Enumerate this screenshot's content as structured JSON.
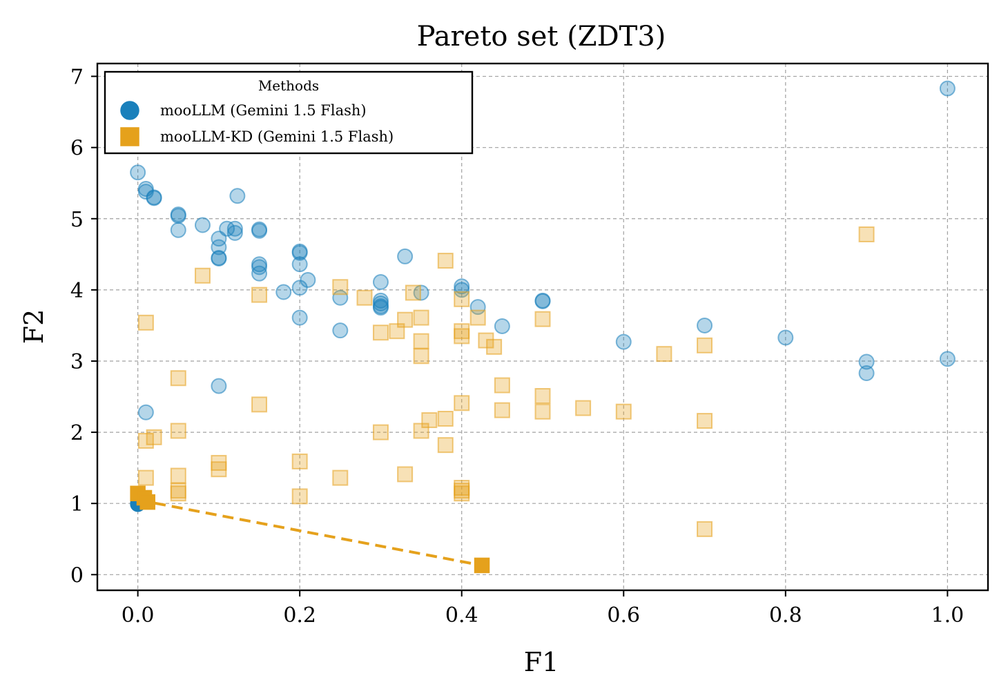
{
  "chart_data": {
    "type": "scatter",
    "title": "Pareto set (ZDT3)",
    "xlabel": "F1",
    "ylabel": "F2",
    "xlim": [
      -0.05,
      1.05
    ],
    "ylim": [
      -0.22,
      7.18
    ],
    "xticks": [
      0.0,
      0.2,
      0.4,
      0.6,
      0.8,
      1.0
    ],
    "xtick_labels": [
      "0.0",
      "0.2",
      "0.4",
      "0.6",
      "0.8",
      "1.0"
    ],
    "yticks": [
      0,
      1,
      2,
      3,
      4,
      5,
      6,
      7
    ],
    "ytick_labels": [
      "0",
      "1",
      "2",
      "3",
      "4",
      "5",
      "6",
      "7"
    ],
    "grid": true,
    "legend": {
      "title": "Methods",
      "placement": "top-left",
      "entries": [
        "mooLLM (Gemini 1.5 Flash)",
        "mooLLM-KD (Gemini 1.5 Flash)"
      ]
    },
    "series": [
      {
        "name": "mooLLM (Gemini 1.5 Flash)",
        "marker": "circle",
        "color": "#1a80bb",
        "points": [
          [
            0.0,
            5.65
          ],
          [
            0.01,
            5.42
          ],
          [
            0.01,
            5.38
          ],
          [
            0.02,
            5.3
          ],
          [
            0.02,
            5.29
          ],
          [
            0.05,
            5.06
          ],
          [
            0.05,
            5.04
          ],
          [
            0.05,
            4.84
          ],
          [
            0.08,
            4.91
          ],
          [
            0.1,
            4.72
          ],
          [
            0.1,
            4.6
          ],
          [
            0.1,
            4.45
          ],
          [
            0.1,
            4.44
          ],
          [
            0.11,
            4.86
          ],
          [
            0.12,
            4.86
          ],
          [
            0.12,
            4.8
          ],
          [
            0.123,
            5.32
          ],
          [
            0.15,
            4.85
          ],
          [
            0.15,
            4.83
          ],
          [
            0.15,
            4.36
          ],
          [
            0.15,
            4.32
          ],
          [
            0.15,
            4.23
          ],
          [
            0.18,
            3.97
          ],
          [
            0.2,
            4.54
          ],
          [
            0.2,
            4.52
          ],
          [
            0.2,
            4.36
          ],
          [
            0.2,
            4.03
          ],
          [
            0.2,
            3.61
          ],
          [
            0.21,
            4.14
          ],
          [
            0.25,
            3.89
          ],
          [
            0.25,
            3.43
          ],
          [
            0.3,
            4.11
          ],
          [
            0.3,
            3.85
          ],
          [
            0.3,
            3.81
          ],
          [
            0.3,
            3.77
          ],
          [
            0.3,
            3.75
          ],
          [
            0.33,
            4.47
          ],
          [
            0.35,
            3.96
          ],
          [
            0.4,
            4.05
          ],
          [
            0.4,
            4.0
          ],
          [
            0.42,
            3.76
          ],
          [
            0.45,
            3.49
          ],
          [
            0.5,
            3.85
          ],
          [
            0.5,
            3.84
          ],
          [
            0.6,
            3.27
          ],
          [
            0.7,
            3.5
          ],
          [
            0.8,
            3.33
          ],
          [
            0.9,
            2.99
          ],
          [
            0.9,
            2.83
          ],
          [
            1.0,
            3.03
          ],
          [
            1.0,
            6.83
          ],
          [
            0.1,
            2.65
          ],
          [
            0.01,
            2.28
          ],
          [
            0.0,
            1.0
          ],
          [
            0.0,
            0.99
          ]
        ],
        "pareto_indices": [
          53,
          54
        ]
      },
      {
        "name": "mooLLM-KD (Gemini 1.5 Flash)",
        "marker": "square",
        "color": "#e5a11c",
        "points": [
          [
            0.08,
            4.2
          ],
          [
            0.01,
            3.54
          ],
          [
            0.05,
            2.76
          ],
          [
            0.05,
            2.02
          ],
          [
            0.01,
            1.88
          ],
          [
            0.02,
            1.93
          ],
          [
            0.01,
            1.36
          ],
          [
            0.05,
            1.39
          ],
          [
            0.05,
            1.18
          ],
          [
            0.05,
            1.14
          ],
          [
            0.1,
            1.57
          ],
          [
            0.1,
            1.48
          ],
          [
            0.15,
            3.93
          ],
          [
            0.15,
            2.39
          ],
          [
            0.2,
            1.59
          ],
          [
            0.2,
            1.1
          ],
          [
            0.25,
            4.04
          ],
          [
            0.25,
            1.36
          ],
          [
            0.28,
            3.89
          ],
          [
            0.3,
            3.4
          ],
          [
            0.3,
            2.0
          ],
          [
            0.32,
            3.42
          ],
          [
            0.33,
            3.58
          ],
          [
            0.33,
            1.41
          ],
          [
            0.34,
            3.96
          ],
          [
            0.35,
            3.61
          ],
          [
            0.35,
            3.28
          ],
          [
            0.35,
            3.07
          ],
          [
            0.35,
            2.02
          ],
          [
            0.36,
            2.17
          ],
          [
            0.38,
            4.41
          ],
          [
            0.38,
            2.19
          ],
          [
            0.38,
            1.82
          ],
          [
            0.4,
            3.87
          ],
          [
            0.4,
            3.42
          ],
          [
            0.4,
            3.35
          ],
          [
            0.4,
            2.41
          ],
          [
            0.4,
            1.22
          ],
          [
            0.4,
            1.18
          ],
          [
            0.4,
            1.14
          ],
          [
            0.42,
            3.61
          ],
          [
            0.43,
            3.29
          ],
          [
            0.44,
            3.2
          ],
          [
            0.45,
            2.66
          ],
          [
            0.45,
            2.31
          ],
          [
            0.5,
            3.59
          ],
          [
            0.5,
            2.51
          ],
          [
            0.5,
            2.29
          ],
          [
            0.55,
            2.34
          ],
          [
            0.6,
            2.29
          ],
          [
            0.65,
            3.1
          ],
          [
            0.7,
            3.22
          ],
          [
            0.7,
            2.16
          ],
          [
            0.7,
            0.64
          ],
          [
            0.9,
            4.78
          ],
          [
            0.0,
            1.14
          ],
          [
            0.008,
            1.08
          ],
          [
            0.012,
            1.02
          ],
          [
            0.425,
            0.13
          ]
        ],
        "pareto_indices": [
          55,
          56,
          57,
          58
        ],
        "front_line": [
          [
            0.0,
            1.05
          ],
          [
            0.425,
            0.13
          ]
        ]
      }
    ]
  }
}
